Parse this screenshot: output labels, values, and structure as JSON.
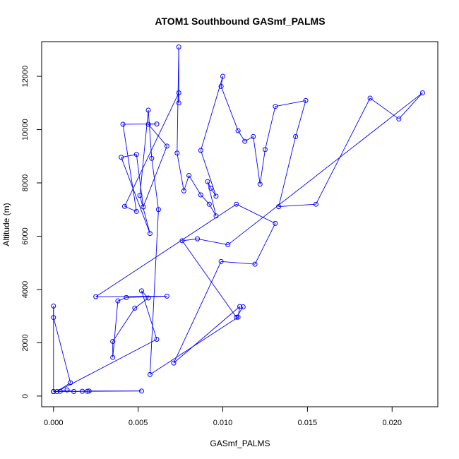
{
  "chart_data": {
    "type": "line",
    "title": "ATOM1 Southbound GASmf_PALMS",
    "xlabel": "GASmf_PALMS",
    "ylabel": "Altitude (m)",
    "xlim": [
      -0.0007,
      0.0227
    ],
    "ylim": [
      -400,
      13300
    ],
    "xticks": [
      0.0,
      0.005,
      0.01,
      0.015,
      0.02
    ],
    "xtick_labels": [
      "0.000",
      "0.005",
      "0.010",
      "0.015",
      "0.020"
    ],
    "yticks": [
      0,
      2000,
      4000,
      6000,
      8000,
      10000,
      12000
    ],
    "ytick_labels": [
      "0",
      "2000",
      "4000",
      "6000",
      "8000",
      "10000",
      "12000"
    ],
    "grid": false,
    "legend": "none",
    "marker": "open-circle",
    "color": "#0000ff",
    "series": [
      {
        "values": [
          [
            0.0,
            170
          ],
          [
            0.0,
            170
          ],
          [
            0.0,
            170
          ],
          [
            0.0004,
            180
          ],
          [
            0.0008,
            230
          ],
          [
            0.0012,
            170
          ],
          [
            0.0017,
            180
          ],
          [
            0.002,
            180
          ],
          [
            0.0021,
            190
          ],
          [
            0.0052,
            190
          ],
          [
            0.0,
            170
          ],
          [
            0.0,
            3380
          ],
          [
            0.0,
            2950
          ],
          [
            0.001,
            500
          ],
          [
            0.0002,
            170
          ],
          [
            0.0061,
            2130
          ],
          [
            0.0052,
            3950
          ],
          [
            0.0056,
            3680
          ],
          [
            0.0048,
            3300
          ],
          [
            0.0035,
            2050
          ],
          [
            0.0035,
            1450
          ],
          [
            0.0038,
            3570
          ],
          [
            0.0043,
            3700
          ],
          [
            0.0067,
            3750
          ],
          [
            0.0025,
            3730
          ],
          [
            0.0108,
            7200
          ],
          [
            0.0131,
            6480
          ],
          [
            0.0119,
            4950
          ],
          [
            0.0099,
            5050
          ],
          [
            0.0071,
            1240
          ],
          [
            0.011,
            3360
          ],
          [
            0.0109,
            2960
          ],
          [
            0.0057,
            810
          ],
          [
            0.0062,
            7000
          ],
          [
            0.0058,
            8920
          ],
          [
            0.0056,
            10730
          ],
          [
            0.0051,
            7530
          ],
          [
            0.0057,
            6100
          ],
          [
            0.004,
            8960
          ],
          [
            0.0049,
            9070
          ],
          [
            0.0053,
            7100
          ],
          [
            0.0067,
            9380
          ],
          [
            0.0056,
            10200
          ],
          [
            0.0061,
            10210
          ],
          [
            0.0041,
            10200
          ],
          [
            0.0049,
            6930
          ],
          [
            0.0042,
            7120
          ],
          [
            0.0074,
            11380
          ],
          [
            0.0074,
            11000
          ],
          [
            0.0074,
            13100
          ],
          [
            0.0073,
            9120
          ],
          [
            0.0077,
            7700
          ],
          [
            0.008,
            8280
          ],
          [
            0.0087,
            7550
          ],
          [
            0.0092,
            7200
          ],
          [
            0.0096,
            6760
          ],
          [
            0.0091,
            8050
          ],
          [
            0.0093,
            7800
          ],
          [
            0.0096,
            7500
          ],
          [
            0.0087,
            9220
          ],
          [
            0.01,
            12000
          ],
          [
            0.0099,
            11620
          ],
          [
            0.0109,
            9960
          ],
          [
            0.0113,
            9560
          ],
          [
            0.0118,
            9740
          ],
          [
            0.0122,
            7950
          ],
          [
            0.0125,
            9250
          ],
          [
            0.0131,
            10870
          ],
          [
            0.0149,
            11090
          ],
          [
            0.0143,
            9740
          ],
          [
            0.0133,
            7110
          ],
          [
            0.0155,
            7200
          ],
          [
            0.0187,
            11180
          ],
          [
            0.0204,
            10400
          ],
          [
            0.0218,
            11380
          ],
          [
            0.0103,
            5680
          ],
          [
            0.0085,
            5900
          ],
          [
            0.0076,
            5830
          ],
          [
            0.0108,
            2960
          ],
          [
            0.0112,
            3350
          ]
        ]
      }
    ]
  }
}
